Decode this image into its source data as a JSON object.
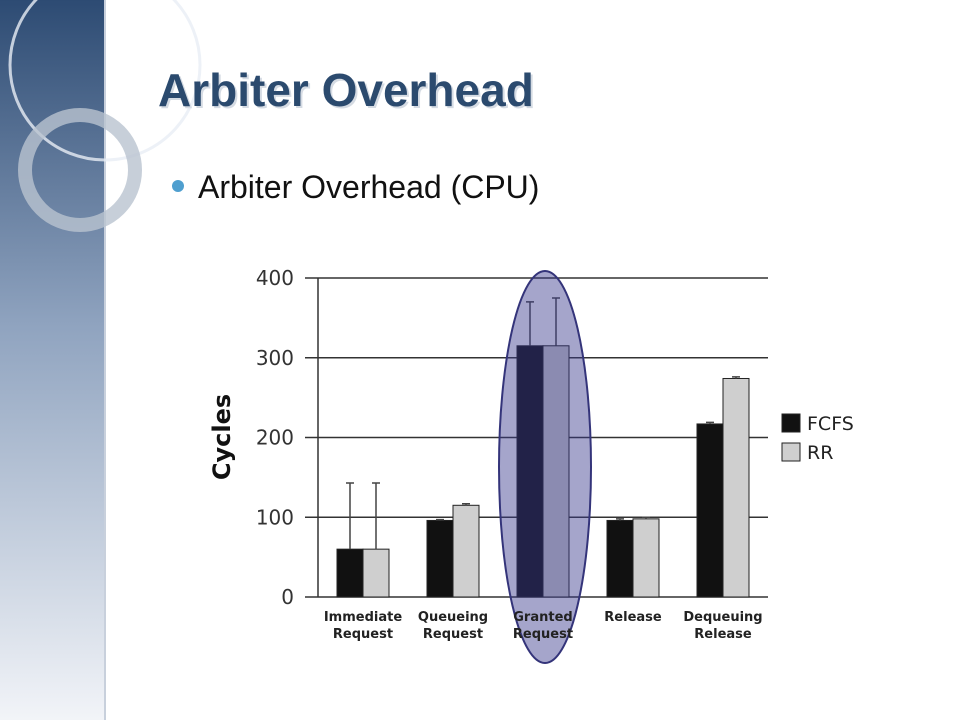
{
  "slide": {
    "title": "Arbiter Overhead",
    "bullet": "Arbiter Overhead (CPU)"
  },
  "chart_data": {
    "type": "bar",
    "ylabel": "Cycles",
    "categories": [
      "Immediate Request",
      "Queueing Request",
      "Granted Request",
      "Release",
      "Dequeuing Release"
    ],
    "series": [
      {
        "name": "FCFS",
        "color": "#111111",
        "values": [
          60,
          96,
          315,
          96,
          217
        ],
        "errors": [
          83,
          1,
          55,
          2,
          2
        ]
      },
      {
        "name": "RR",
        "color": "#cfcfcf",
        "values": [
          60,
          115,
          315,
          98,
          274
        ],
        "errors": [
          83,
          2,
          60,
          2,
          2
        ]
      }
    ],
    "ylim": [
      0,
      400
    ],
    "yticks": [
      0,
      100,
      200,
      300,
      400
    ],
    "grid": true,
    "legend": "right"
  }
}
